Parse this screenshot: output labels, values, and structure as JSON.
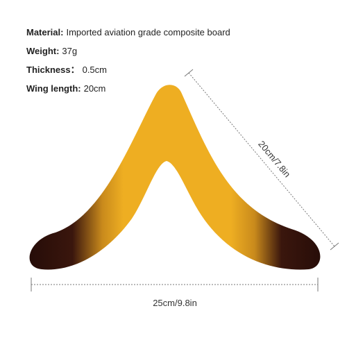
{
  "specs": [
    {
      "label": "Material:",
      "value": "Imported aviation grade composite board"
    },
    {
      "label": "Weight:",
      "value": "37g"
    },
    {
      "label": "Thickness：",
      "value": "0.5cm"
    },
    {
      "label": "Wing length:",
      "value": "20cm"
    }
  ],
  "dimensions": {
    "wing": "20cm/7.8in",
    "span": "25cm/9.8in"
  }
}
